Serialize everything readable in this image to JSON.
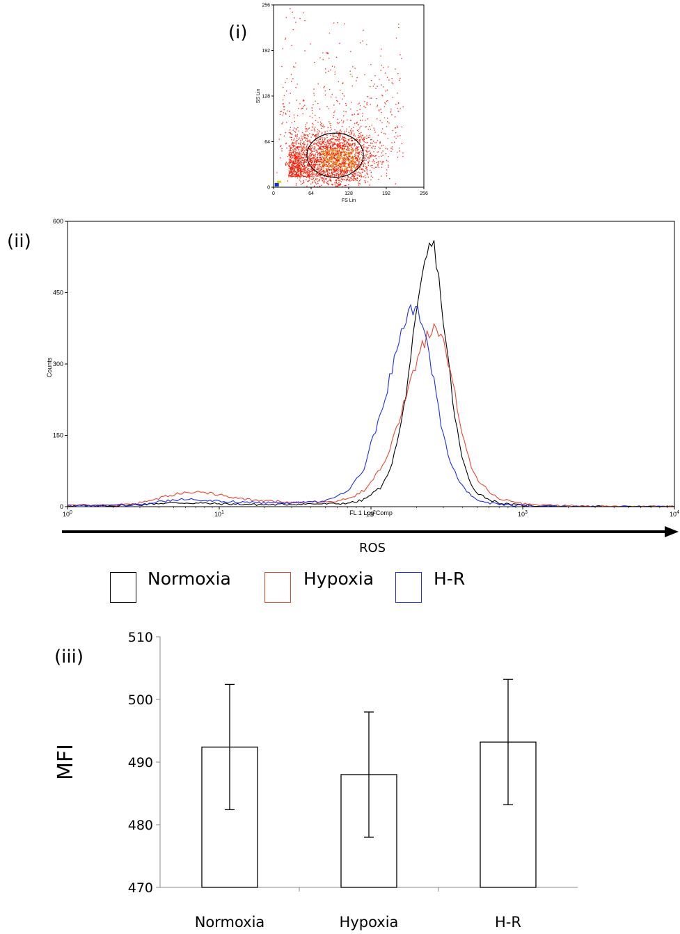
{
  "panels": {
    "i": "(i)",
    "ii": "(ii)",
    "iii": "(iii)"
  },
  "scatter": {
    "xlabel": "FS Lin",
    "ylabel": "SS Lin",
    "x_ticks": [
      "0",
      "64",
      "128",
      "192",
      "256"
    ],
    "y_ticks": [
      "0",
      "64",
      "128",
      "192",
      "256"
    ],
    "xlim": [
      0,
      256
    ],
    "ylim": [
      0,
      256
    ],
    "gate": {
      "shape": "ellipse",
      "center": [
        105,
        45
      ],
      "radii": [
        48,
        31
      ],
      "color": "#000000"
    },
    "point_color": "#ff1a00",
    "dense_color": "#d8b020"
  },
  "arrow_label": "ROS",
  "legend": [
    {
      "label": "Normoxia",
      "color": "#000000"
    },
    {
      "label": "Hypoxia",
      "color": "#e8472f"
    },
    {
      "label": "H-R",
      "color": "#1b2bff"
    }
  ],
  "chart_data": [
    {
      "type": "line",
      "title": "",
      "xlabel": "FL 1 Log Comp",
      "ylabel": "Counts",
      "xscale": "log",
      "xlim": [
        1,
        10000
      ],
      "ylim": [
        0,
        600
      ],
      "x_tick_labels": [
        "10^0",
        "10^1",
        "10^2",
        "10^3",
        "10^4"
      ],
      "y_tick_labels": [
        "0",
        "150",
        "300",
        "450",
        "600"
      ],
      "x": [
        1,
        2,
        3,
        4,
        5,
        6,
        8,
        10,
        15,
        20,
        30,
        40,
        50,
        60,
        70,
        80,
        90,
        100,
        120,
        140,
        160,
        180,
        200,
        220,
        240,
        260,
        280,
        300,
        330,
        360,
        400,
        450,
        500,
        600,
        700,
        800,
        1000,
        1200,
        1500,
        2000,
        3000,
        10000
      ],
      "series": [
        {
          "name": "Normoxia",
          "color": "#000000",
          "values": [
            2,
            2,
            4,
            7,
            8,
            8,
            7,
            6,
            5,
            4,
            5,
            6,
            6,
            6,
            8,
            10,
            15,
            25,
            45,
            100,
            180,
            300,
            400,
            490,
            545,
            550,
            480,
            390,
            280,
            180,
            100,
            50,
            30,
            15,
            8,
            5,
            3,
            2,
            1,
            0,
            0,
            0
          ]
        },
        {
          "name": "Hypoxia",
          "color": "#e8472f",
          "values": [
            3,
            3,
            8,
            18,
            25,
            30,
            30,
            25,
            15,
            12,
            10,
            10,
            10,
            12,
            18,
            25,
            35,
            50,
            90,
            140,
            200,
            260,
            300,
            340,
            365,
            380,
            370,
            340,
            290,
            230,
            150,
            90,
            60,
            30,
            18,
            12,
            6,
            4,
            3,
            2,
            1,
            0
          ]
        },
        {
          "name": "H-R",
          "color": "#1b2bff",
          "values": [
            2,
            2,
            5,
            10,
            14,
            15,
            14,
            12,
            9,
            8,
            8,
            9,
            12,
            20,
            35,
            55,
            80,
            130,
            210,
            300,
            370,
            410,
            420,
            380,
            320,
            260,
            200,
            150,
            100,
            70,
            45,
            25,
            15,
            8,
            5,
            3,
            2,
            1,
            1,
            0,
            0,
            0
          ]
        }
      ]
    },
    {
      "type": "bar",
      "title": "",
      "xlabel": "",
      "ylabel": "MFI",
      "categories": [
        "Normoxia",
        "Hypoxia",
        "H-R"
      ],
      "values": [
        492.4,
        488.0,
        493.2
      ],
      "errors": [
        10.0,
        10.0,
        10.0
      ],
      "ylim": [
        470,
        510
      ],
      "y_ticks": [
        "470",
        "480",
        "490",
        "500",
        "510"
      ],
      "bar_fill": "#ffffff",
      "bar_stroke": "#000000"
    }
  ]
}
